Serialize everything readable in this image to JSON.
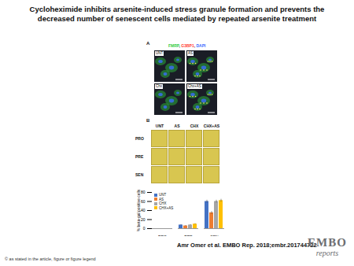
{
  "title": "Cycloheximide inhibits arsenite-induced stress granule formation and prevents the decreased number of senescent cells mediated by repeated arsenite treatment",
  "panel_a": {
    "label": "A",
    "stain": [
      "FMRP",
      "G3BP1",
      "DAPI"
    ],
    "stain_colors": [
      "#2ecc40",
      "#ff3b30",
      "#3b6bff"
    ],
    "images": [
      "UNT",
      "AS",
      "Chx",
      "Chx+AS"
    ]
  },
  "panel_b": {
    "label": "B",
    "columns": [
      "UNT",
      "AS",
      "CHX",
      "CHX+AS"
    ],
    "rows": [
      "PRO",
      "PRE",
      "SEN"
    ]
  },
  "citation": "Amr Omer et al. EMBO Rep. 2018;embr.201744722",
  "copyright": "© as stated in the article, figure or figure legend",
  "logo": [
    "EMBO",
    "reports"
  ],
  "chart_data": {
    "type": "bar",
    "categories": [
      "PRO",
      "PRE",
      "SEN"
    ],
    "series": [
      {
        "name": "UNT",
        "color": "#4472c4",
        "values": [
          0,
          8,
          60
        ],
        "errors": [
          0,
          1,
          3
        ]
      },
      {
        "name": "AS",
        "color": "#ed7d31",
        "values": [
          0,
          6,
          35
        ],
        "errors": [
          0,
          1,
          3
        ]
      },
      {
        "name": "CHX",
        "color": "#a5a5a5",
        "values": [
          0,
          8,
          60
        ],
        "errors": [
          0,
          1,
          3
        ]
      },
      {
        "name": "CHX+AS",
        "color": "#ffc000",
        "values": [
          0,
          10,
          62
        ],
        "errors": [
          0,
          1,
          3
        ]
      }
    ],
    "y_label": "% beta-gal positive cells",
    "ylim": [
      0,
      80
    ],
    "yticks": [
      0,
      20,
      40,
      60,
      80
    ],
    "legend": "top-left",
    "grid": false
  }
}
